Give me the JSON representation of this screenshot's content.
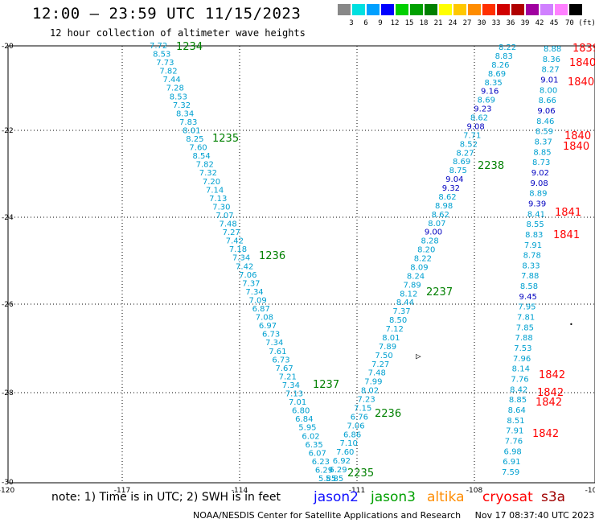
{
  "header": {
    "title": "12:00 – 23:59 UTC 11/15/2023",
    "subtitle": "12 hour collection of altimeter wave heights"
  },
  "color_scale": {
    "labels": [
      "3",
      "6",
      "9",
      "12",
      "15",
      "18",
      "21",
      "24",
      "27",
      "30",
      "33",
      "36",
      "39",
      "42",
      "45",
      "70 (ft)"
    ],
    "colors": [
      "#888888",
      "#00e0e0",
      "#00a0ff",
      "#0000ff",
      "#00d000",
      "#00a000",
      "#008000",
      "#ffff00",
      "#ffc800",
      "#ff8c00",
      "#ff3000",
      "#d00000",
      "#b00000",
      "#a000a0",
      "#d080ff",
      "#ff80ff",
      "#000000"
    ]
  },
  "map": {
    "x_ticks": [
      "-120",
      "-117",
      "-114",
      "-111",
      "-108",
      "-10"
    ],
    "y_ticks": [
      "-20",
      "-22",
      "-24",
      "-26",
      "-28",
      "-30"
    ]
  },
  "tracks": {
    "left_descending": {
      "color": "#00a0d0",
      "values": [
        "7.72",
        "8.53",
        "7.73",
        "7.82",
        "7.44",
        "7.28",
        "8.53",
        "7.32",
        "8.34",
        "7.83",
        "8.01",
        "8.25",
        "7.60",
        "8.54",
        "7.82",
        "7.32",
        "7.20",
        "7.14",
        "7.13",
        "7.30",
        "7.07",
        "7.48",
        "7.27",
        "7.42",
        "7.18",
        "7.34",
        "7.42",
        "7.06",
        "7.37",
        "7.34",
        "7.09",
        "6.87",
        "7.08",
        "6.97",
        "6.73",
        "7.34",
        "7.61",
        "6.73",
        "7.67",
        "7.21",
        "7.34",
        "7.13",
        "7.01",
        "6.80",
        "6.84",
        "5.95",
        "6.02",
        "6.35",
        "6.07",
        "6.23",
        "6.29",
        "5.85"
      ],
      "times": [
        "1234",
        "1235",
        "1236",
        "1237"
      ]
    },
    "right_ascending": {
      "color": "#00a0d0",
      "values": [
        "5.85",
        "6.29",
        "6.92",
        "7.60",
        "7.10",
        "6.86",
        "7.06",
        "6.76",
        "7.15",
        "7.23",
        "8.02",
        "7.99",
        "7.48",
        "7.27",
        "7.50",
        "7.89",
        "8.01",
        "7.12",
        "8.50",
        "7.37",
        "8.44",
        "8.12",
        "7.89",
        "8.24",
        "8.09",
        "8.22",
        "8.20",
        "8.28",
        "9.00",
        "8.07",
        "8.62",
        "8.98",
        "8.62",
        "9.32",
        "9.04",
        "8.75",
        "8.69",
        "8.27",
        "8.52",
        "7.71",
        "9.08",
        "8.62",
        "9.23",
        "8.69",
        "9.16",
        "8.35",
        "8.69",
        "8.26",
        "8.83",
        "8.22"
      ],
      "times": [
        "2235",
        "2236",
        "2237",
        "2238"
      ]
    },
    "far_right": {
      "values": [
        "8.88",
        "8.36",
        "8.27",
        "9.01",
        "8.00",
        "8.66",
        "9.06",
        "8.46",
        "8.59",
        "8.37",
        "8.85",
        "8.73",
        "9.02",
        "9.08",
        "8.89",
        "9.39",
        "8.41",
        "8.55",
        "8.83",
        "7.91",
        "8.78",
        "8.33",
        "7.88",
        "8.58",
        "9.45",
        "7.95",
        "7.81",
        "7.85",
        "7.88",
        "7.53",
        "7.96",
        "8.14",
        "7.76",
        "8.42",
        "8.85",
        "8.64",
        "8.51",
        "7.91",
        "7.76",
        "6.98",
        "6.91",
        "7.59"
      ],
      "times": [
        "1839",
        "1840",
        "1840",
        "1840",
        "1840",
        "1841",
        "1841",
        "1842",
        "1842",
        "1842",
        "1842"
      ]
    },
    "center_marker": "▷",
    "right_marker": "•"
  },
  "footer": {
    "note": "note:  1) Time is in UTC;  2) SWH is in feet",
    "satellites": [
      {
        "name": "jason2",
        "color": "#1010ff"
      },
      {
        "name": "jason3",
        "color": "#00a000"
      },
      {
        "name": "altika",
        "color": "#ff8c00"
      },
      {
        "name": "cryosat",
        "color": "#ff0000"
      },
      {
        "name": "s3a",
        "color": "#a00000"
      }
    ],
    "credit": "NOAA/NESDIS Center for Satellite Applications and Research",
    "timestamp": "Nov 17 08:37:40 UTC 2023"
  }
}
